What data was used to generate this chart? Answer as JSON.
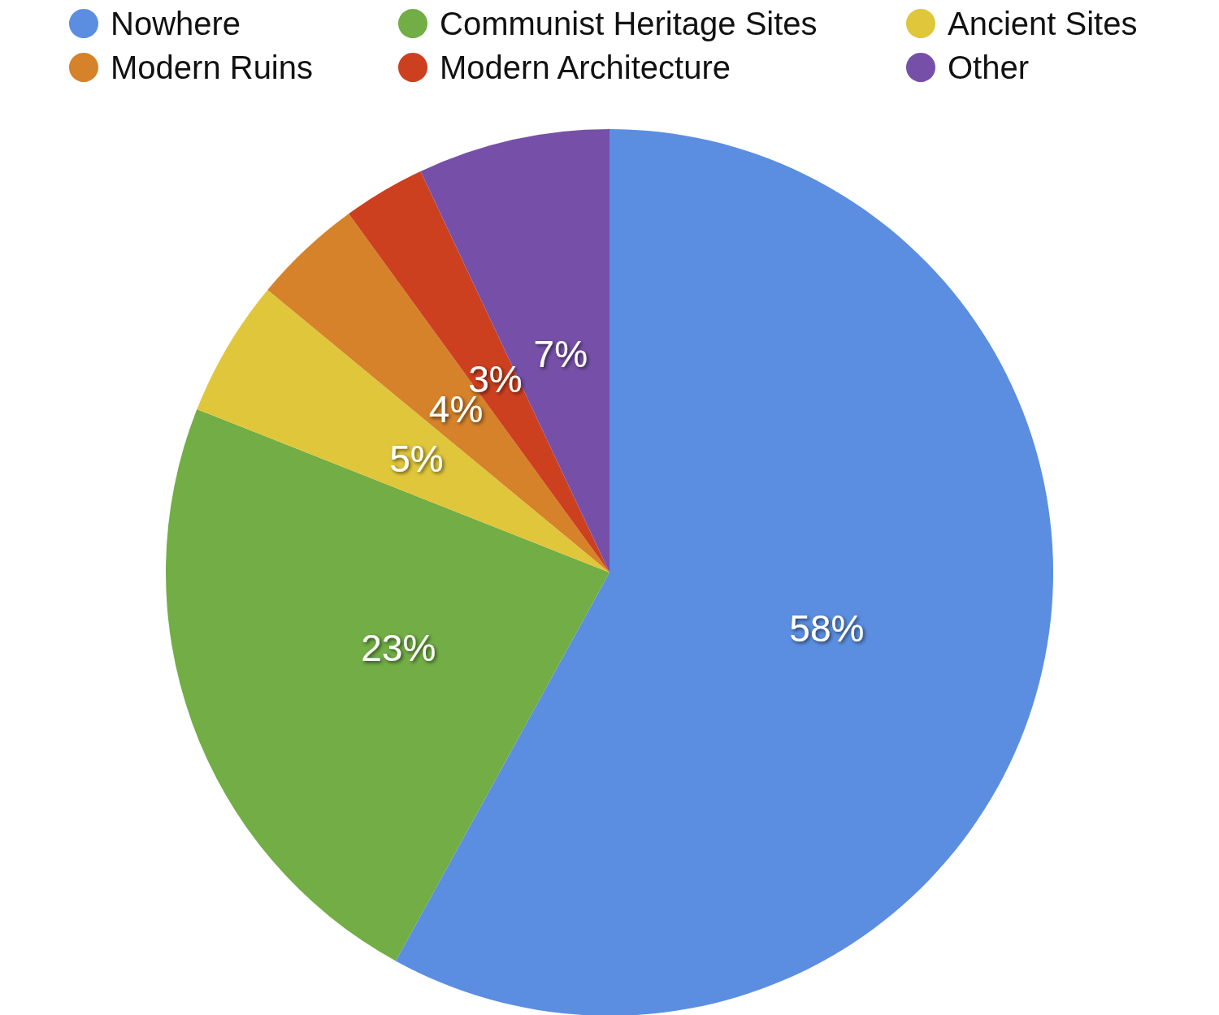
{
  "chart_data": {
    "type": "pie",
    "categories": [
      "Nowhere",
      "Communist Heritage Sites",
      "Ancient Sites",
      "Modern Ruins",
      "Modern Architecture",
      "Other"
    ],
    "values": [
      58,
      23,
      5,
      4,
      3,
      7
    ],
    "colors": [
      "#5b8ee0",
      "#72ad45",
      "#e0c63a",
      "#d5822a",
      "#cc4020",
      "#7650a8"
    ],
    "value_labels": [
      "58%",
      "23%",
      "5%",
      "4%",
      "3%",
      "7%"
    ],
    "legend": "top"
  }
}
